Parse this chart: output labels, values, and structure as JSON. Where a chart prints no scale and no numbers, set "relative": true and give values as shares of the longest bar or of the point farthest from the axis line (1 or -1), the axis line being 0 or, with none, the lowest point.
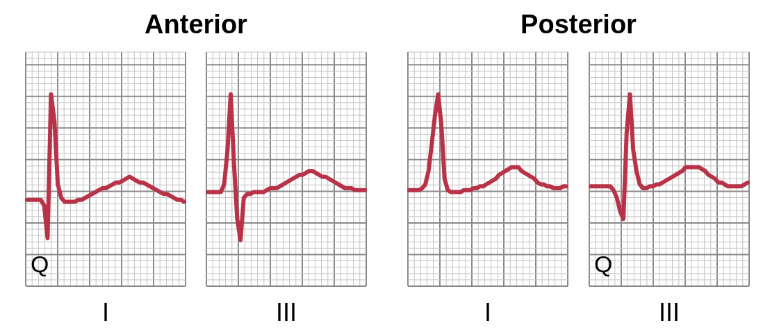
{
  "chart_data": [
    {
      "type": "line",
      "title": "Anterior",
      "xlabel": "I",
      "annotations": [
        "Q"
      ],
      "relative": true,
      "grid": true,
      "categories": [
        null,
        null,
        null,
        null,
        null,
        null,
        null,
        null,
        null,
        null,
        null,
        null,
        null,
        null,
        null,
        null,
        null,
        null,
        null,
        null,
        null,
        null,
        null,
        null,
        null,
        null,
        null,
        null,
        null,
        null,
        null,
        null,
        null,
        null,
        null,
        null,
        null,
        null,
        null,
        null,
        null,
        null,
        null,
        null,
        null,
        null,
        null
      ],
      "series": [
        {
          "color": "#b83348",
          "values": [
            0.45,
            0.45,
            0.45,
            0.45,
            0.45,
            0.42,
            0.25,
            1,
            0.86,
            0.53,
            0.46,
            0.44,
            0.44,
            0.44,
            0.44,
            0.45,
            0.45,
            0.46,
            0.47,
            0.48,
            0.49,
            0.5,
            0.51,
            0.51,
            0.52,
            0.53,
            0.54,
            0.54,
            0.55,
            0.56,
            0.57,
            0.56,
            0.55,
            0.54,
            0.54,
            0.53,
            0.52,
            0.51,
            0.5,
            0.49,
            0.48,
            0.48,
            0.47,
            0.46,
            0.45,
            0.45,
            0.44
          ]
        }
      ]
    },
    {
      "type": "line",
      "xlabel": "III",
      "relative": true,
      "grid": true,
      "categories": [
        null,
        null,
        null,
        null,
        null,
        null,
        null,
        null,
        null,
        null,
        null,
        null,
        null,
        null,
        null,
        null,
        null,
        null,
        null,
        null,
        null,
        null,
        null,
        null,
        null,
        null,
        null,
        null,
        null,
        null,
        null,
        null,
        null,
        null,
        null,
        null,
        null,
        null,
        null,
        null,
        null,
        null,
        null,
        null,
        null,
        null,
        null,
        null,
        null
      ],
      "series": [
        {
          "color": "#b83348",
          "values": [
            0.49,
            0.49,
            0.49,
            0.49,
            0.49,
            0.53,
            0.7,
            1,
            0.64,
            0.35,
            0.24,
            0.46,
            0.48,
            0.48,
            0.49,
            0.49,
            0.49,
            0.49,
            0.5,
            0.51,
            0.51,
            0.51,
            0.52,
            0.53,
            0.54,
            0.55,
            0.56,
            0.57,
            0.58,
            0.58,
            0.59,
            0.6,
            0.6,
            0.59,
            0.58,
            0.57,
            0.57,
            0.56,
            0.55,
            0.54,
            0.53,
            0.52,
            0.51,
            0.51,
            0.51,
            0.5,
            0.5,
            0.5,
            0.5
          ]
        }
      ]
    },
    {
      "type": "line",
      "title": "Posterior",
      "xlabel": "I",
      "relative": true,
      "grid": true,
      "categories": [
        null,
        null,
        null,
        null,
        null,
        null,
        null,
        null,
        null,
        null,
        null,
        null,
        null,
        null,
        null,
        null,
        null,
        null,
        null,
        null,
        null,
        null,
        null,
        null,
        null,
        null,
        null,
        null,
        null,
        null,
        null,
        null,
        null,
        null,
        null,
        null,
        null,
        null,
        null,
        null,
        null,
        null,
        null,
        null,
        null,
        null,
        null,
        null,
        null,
        null
      ],
      "series": [
        {
          "color": "#b83348",
          "values": [
            0.5,
            0.5,
            0.5,
            0.5,
            0.51,
            0.53,
            0.6,
            0.74,
            0.89,
            1,
            0.84,
            0.56,
            0.5,
            0.49,
            0.49,
            0.49,
            0.49,
            0.5,
            0.5,
            0.5,
            0.51,
            0.51,
            0.52,
            0.52,
            0.53,
            0.54,
            0.55,
            0.56,
            0.58,
            0.59,
            0.6,
            0.61,
            0.62,
            0.62,
            0.62,
            0.6,
            0.59,
            0.58,
            0.57,
            0.56,
            0.54,
            0.53,
            0.53,
            0.52,
            0.52,
            0.51,
            0.51,
            0.51,
            0.52,
            0.52
          ]
        }
      ]
    },
    {
      "type": "line",
      "xlabel": "III",
      "annotations": [
        "Q"
      ],
      "relative": true,
      "grid": true,
      "categories": [
        null,
        null,
        null,
        null,
        null,
        null,
        null,
        null,
        null,
        null,
        null,
        null,
        null,
        null,
        null,
        null,
        null,
        null,
        null,
        null,
        null,
        null,
        null,
        null,
        null,
        null,
        null,
        null,
        null,
        null,
        null,
        null,
        null,
        null,
        null,
        null,
        null,
        null,
        null,
        null,
        null,
        null,
        null,
        null,
        null,
        null,
        null,
        null,
        null
      ],
      "series": [
        {
          "color": "#b83348",
          "values": [
            0.52,
            0.52,
            0.52,
            0.52,
            0.52,
            0.52,
            0.52,
            0.5,
            0.46,
            0.39,
            0.35,
            0.8,
            1,
            0.71,
            0.6,
            0.53,
            0.51,
            0.51,
            0.52,
            0.52,
            0.53,
            0.53,
            0.54,
            0.55,
            0.56,
            0.57,
            0.58,
            0.59,
            0.6,
            0.62,
            0.62,
            0.62,
            0.62,
            0.62,
            0.61,
            0.6,
            0.58,
            0.57,
            0.56,
            0.54,
            0.54,
            0.53,
            0.52,
            0.52,
            0.52,
            0.52,
            0.52,
            0.53,
            0.54
          ]
        }
      ]
    }
  ]
}
